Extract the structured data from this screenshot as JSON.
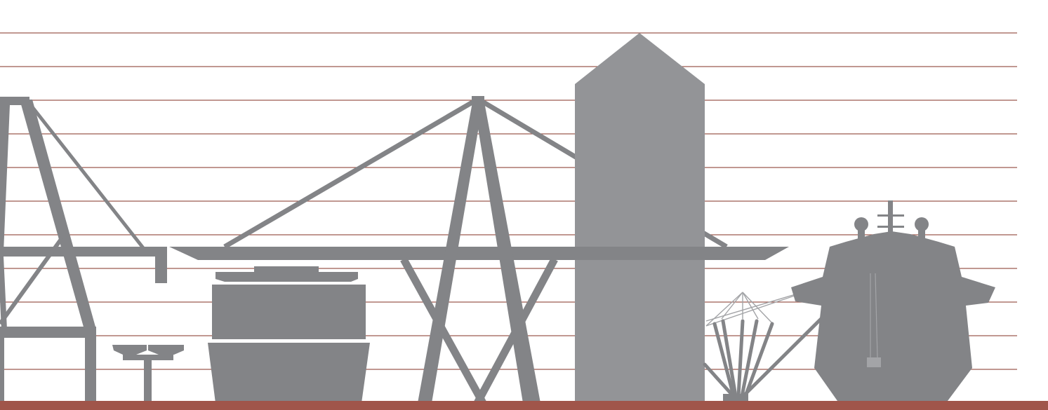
{
  "illustration": {
    "subject": "",
    "icons": [
      "harbor-crane-icon",
      "bollard-icon",
      "container-ship-hull-icon",
      "gantry-crane-icon",
      "grain-silo-icon",
      "mooring-rig-icon",
      "ship-bow-icon"
    ]
  },
  "colors": {
    "background": "#ffffff",
    "silhouette": "#838487",
    "silo": "#939497",
    "rig_lines": "#a3a4a7",
    "guide_lines": "#9c5a4f",
    "ground": "#a0554a"
  }
}
